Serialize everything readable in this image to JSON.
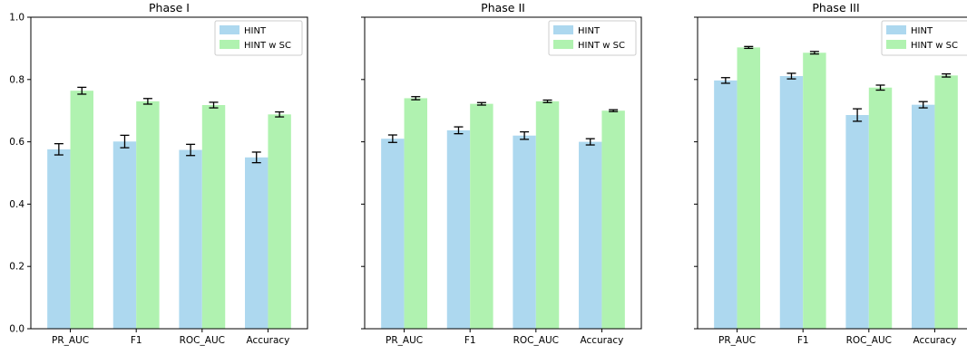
{
  "chart_data": [
    {
      "type": "bar",
      "title": "Phase I",
      "categories": [
        "PR_AUC",
        "F1",
        "ROC_AUC",
        "Accuracy"
      ],
      "series": [
        {
          "name": "HINT",
          "values": [
            0.576,
            0.601,
            0.574,
            0.55
          ],
          "errors": [
            0.018,
            0.02,
            0.018,
            0.017
          ]
        },
        {
          "name": "HINT w SC",
          "values": [
            0.764,
            0.73,
            0.718,
            0.688
          ],
          "errors": [
            0.011,
            0.009,
            0.009,
            0.008
          ]
        }
      ],
      "ylim": [
        0,
        1
      ],
      "yticks": [
        "0.0",
        "0.2",
        "0.4",
        "0.6",
        "0.8",
        "1.0"
      ],
      "legend": "top-right",
      "grid": false
    },
    {
      "type": "bar",
      "title": "Phase II",
      "categories": [
        "PR_AUC",
        "F1",
        "ROC_AUC",
        "Accuracy"
      ],
      "series": [
        {
          "name": "HINT",
          "values": [
            0.61,
            0.637,
            0.62,
            0.6
          ],
          "errors": [
            0.012,
            0.011,
            0.012,
            0.01
          ]
        },
        {
          "name": "HINT w SC",
          "values": [
            0.74,
            0.722,
            0.73,
            0.7
          ],
          "errors": [
            0.005,
            0.004,
            0.004,
            0.003
          ]
        }
      ],
      "ylim": [
        0,
        1
      ],
      "legend": "top-right",
      "grid": false
    },
    {
      "type": "bar",
      "title": "Phase III",
      "categories": [
        "PR_AUC",
        "F1",
        "ROC_AUC",
        "Accuracy"
      ],
      "series": [
        {
          "name": "HINT",
          "values": [
            0.797,
            0.811,
            0.686,
            0.719
          ],
          "errors": [
            0.009,
            0.009,
            0.02,
            0.01
          ]
        },
        {
          "name": "HINT w SC",
          "values": [
            0.903,
            0.886,
            0.774,
            0.813
          ],
          "errors": [
            0.003,
            0.004,
            0.008,
            0.005
          ]
        }
      ],
      "ylim": [
        0,
        1
      ],
      "legend": "top-right",
      "grid": false
    }
  ],
  "colors": {
    "HINT": "#add8ef",
    "HINT w SC": "#b0f2b0",
    "errorbar": "#000000",
    "axis": "#000000"
  }
}
